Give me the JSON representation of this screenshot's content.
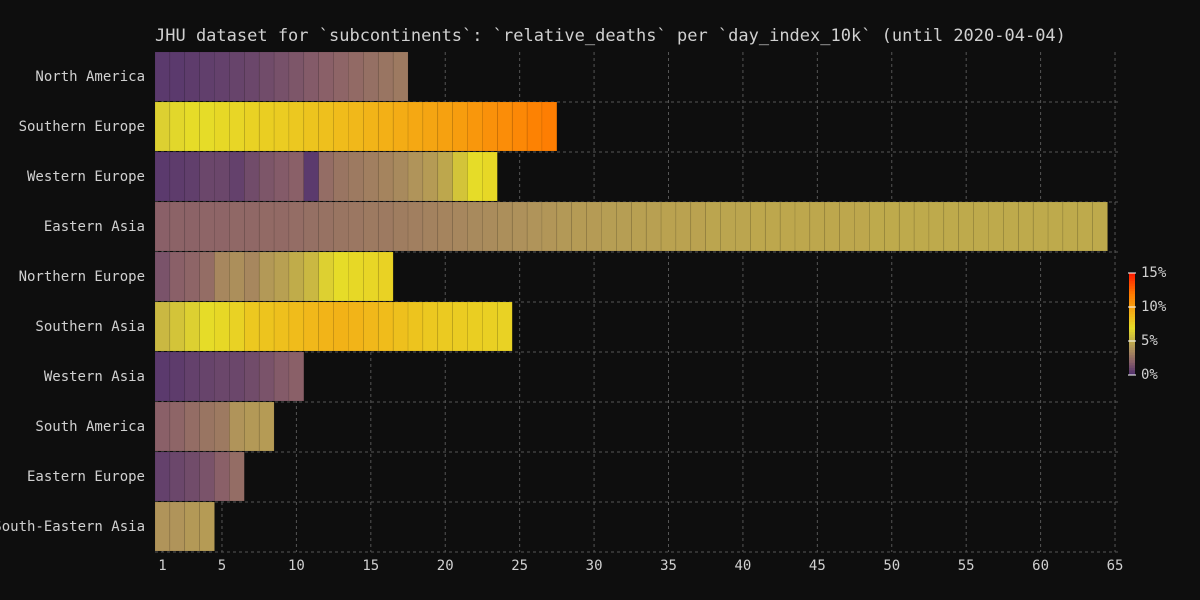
{
  "chart_data": {
    "type": "heatmap",
    "title": "JHU dataset for `subcontinents`: `relative_deaths` per `day_index_10k` (until 2020-04-04)",
    "categories": [
      "North America",
      "Southern Europe",
      "Western Europe",
      "Eastern Asia",
      "Northern Europe",
      "Southern Asia",
      "Western Asia",
      "South America",
      "Eastern Europe",
      "South-Eastern Asia"
    ],
    "x": [
      1,
      2,
      3,
      4,
      5,
      6,
      7,
      8,
      9,
      10,
      11,
      12,
      13,
      14,
      15,
      16,
      17,
      18,
      19,
      20,
      21,
      22,
      23,
      24,
      25,
      26,
      27,
      28,
      29,
      30,
      31,
      32,
      33,
      34,
      35,
      36,
      37,
      38,
      39,
      40,
      41,
      42,
      43,
      44,
      45,
      46,
      47,
      48,
      49,
      50,
      51,
      52,
      53,
      54,
      55,
      56,
      57,
      58,
      59,
      60,
      61,
      62,
      63,
      64
    ],
    "values": [
      [
        0.5,
        0.5,
        0.6,
        0.7,
        0.8,
        0.9,
        1.0,
        1.2,
        1.4,
        1.6,
        1.8,
        2.0,
        2.2,
        2.4,
        2.6,
        2.8,
        3.0
      ],
      [
        6.5,
        6.8,
        7,
        7,
        7.2,
        7.3,
        7.5,
        7.7,
        7.8,
        8,
        8.2,
        8.4,
        8.6,
        8.8,
        9,
        9.2,
        9.4,
        9.6,
        9.8,
        10,
        10.2,
        10.5,
        10.8,
        11,
        11.3,
        11.6,
        11.8
      ],
      [
        0.5,
        0.6,
        0.7,
        1,
        1,
        0.8,
        1.2,
        1.6,
        1.8,
        2.0,
        0.5,
        2.5,
        2.8,
        3,
        3.2,
        3.4,
        3.6,
        4,
        4.3,
        4.8,
        6,
        7,
        7.2
      ],
      [
        2.0,
        2.1,
        2.1,
        2.2,
        2.2,
        2.3,
        2.3,
        2.4,
        2.4,
        2.5,
        2.6,
        2.7,
        2.8,
        2.9,
        3.0,
        3.0,
        3.1,
        3.2,
        3.3,
        3.4,
        3.5,
        3.6,
        3.7,
        3.8,
        3.9,
        4.0,
        4.1,
        4.2,
        4.3,
        4.3,
        4.4,
        4.4,
        4.5,
        4.5,
        4.6,
        4.6,
        4.6,
        4.7,
        4.7,
        4.7,
        4.8,
        4.8,
        4.8,
        4.8,
        4.8,
        4.8,
        4.8,
        4.8,
        4.9,
        4.9,
        4.9,
        4.9,
        4.9,
        4.9,
        4.9,
        4.9,
        4.9,
        4.9,
        4.9,
        4.9,
        4.9,
        4.9,
        4.9,
        4.9
      ],
      [
        1.5,
        2,
        2.2,
        2.5,
        3.5,
        3.8,
        3.5,
        4.2,
        4.5,
        5,
        5.5,
        6.5,
        7,
        7.2,
        7.3,
        7.5
      ],
      [
        5.5,
        6,
        6.5,
        7,
        7.2,
        7.5,
        8,
        8.2,
        8.4,
        8.6,
        8.8,
        9,
        9.1,
        9,
        8.8,
        8.6,
        8.4,
        8.2,
        8,
        7.9,
        7.8,
        7.7,
        7.6,
        7.5
      ],
      [
        0.5,
        0.6,
        0.8,
        0.9,
        1,
        1,
        1.2,
        1.5,
        1.8,
        2
      ],
      [
        2,
        2.2,
        2.5,
        2.8,
        3,
        4,
        4.2,
        4.3
      ],
      [
        0.8,
        1,
        1.2,
        1.5,
        2,
        2.5
      ],
      [
        4,
        4,
        4.2,
        4.3
      ]
    ],
    "xlim": [
      0.5,
      65.2
    ],
    "xticks": [
      1,
      5,
      10,
      15,
      20,
      25,
      30,
      35,
      40,
      45,
      50,
      55,
      60,
      65
    ],
    "grid": true,
    "colorscale": [
      [
        0,
        "#4b2d6e"
      ],
      [
        2,
        "#8a6068"
      ],
      [
        4,
        "#b0945a"
      ],
      [
        5,
        "#c0ac4a"
      ],
      [
        7,
        "#e6dc28"
      ],
      [
        9,
        "#f2b418"
      ],
      [
        12,
        "#ff7a00"
      ],
      [
        15,
        "#ff1a00"
      ]
    ],
    "colorbar": {
      "lim": [
        0,
        15
      ],
      "ticks": [
        {
          "value": 0,
          "label": "0%"
        },
        {
          "value": 5,
          "label": "5%"
        },
        {
          "value": 10,
          "label": "10%"
        },
        {
          "value": 15,
          "label": "15%"
        }
      ]
    }
  }
}
